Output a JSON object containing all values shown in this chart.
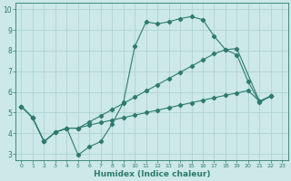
{
  "xlabel": "Humidex (Indice chaleur)",
  "xlim": [
    -0.5,
    23.5
  ],
  "ylim": [
    2.7,
    10.3
  ],
  "bg_color": "#cce8e8",
  "grid_color": "#aacfcf",
  "line_color": "#2d7b6e",
  "line1_x": [
    0,
    1,
    2,
    3,
    4,
    5,
    6,
    7,
    8,
    9,
    10,
    11,
    12,
    13,
    14,
    15,
    16,
    17,
    18,
    19,
    20,
    21,
    22
  ],
  "line1_y": [
    5.3,
    4.75,
    3.6,
    4.05,
    4.25,
    2.95,
    3.35,
    3.6,
    4.45,
    5.5,
    8.2,
    9.4,
    9.3,
    9.4,
    9.55,
    9.65,
    9.5,
    8.7,
    8.05,
    7.8,
    6.5,
    5.5,
    5.8
  ],
  "line2_x": [
    0,
    1,
    2,
    3,
    4,
    5,
    6,
    7,
    8,
    9,
    10,
    11,
    12,
    13,
    14,
    15,
    16,
    17,
    18,
    19,
    21,
    22
  ],
  "line2_y": [
    5.3,
    4.75,
    3.6,
    4.05,
    4.25,
    4.25,
    4.55,
    4.85,
    5.15,
    5.45,
    5.75,
    6.05,
    6.35,
    6.65,
    6.95,
    7.25,
    7.55,
    7.85,
    8.05,
    8.1,
    5.55,
    5.8
  ],
  "line3_x": [
    0,
    1,
    2,
    3,
    4,
    5,
    6,
    7,
    8,
    9,
    10,
    11,
    12,
    13,
    14,
    15,
    16,
    17,
    18,
    19,
    20,
    21,
    22
  ],
  "line3_y": [
    5.3,
    4.75,
    3.6,
    4.05,
    4.25,
    4.25,
    4.4,
    4.52,
    4.64,
    4.76,
    4.88,
    5.0,
    5.12,
    5.24,
    5.36,
    5.48,
    5.6,
    5.72,
    5.84,
    5.95,
    6.07,
    5.55,
    5.8
  ],
  "yticks": [
    3,
    4,
    5,
    6,
    7,
    8,
    9,
    10
  ],
  "xticks": [
    0,
    1,
    2,
    3,
    4,
    5,
    6,
    7,
    8,
    9,
    10,
    11,
    12,
    13,
    14,
    15,
    16,
    17,
    18,
    19,
    20,
    21,
    22,
    23
  ]
}
